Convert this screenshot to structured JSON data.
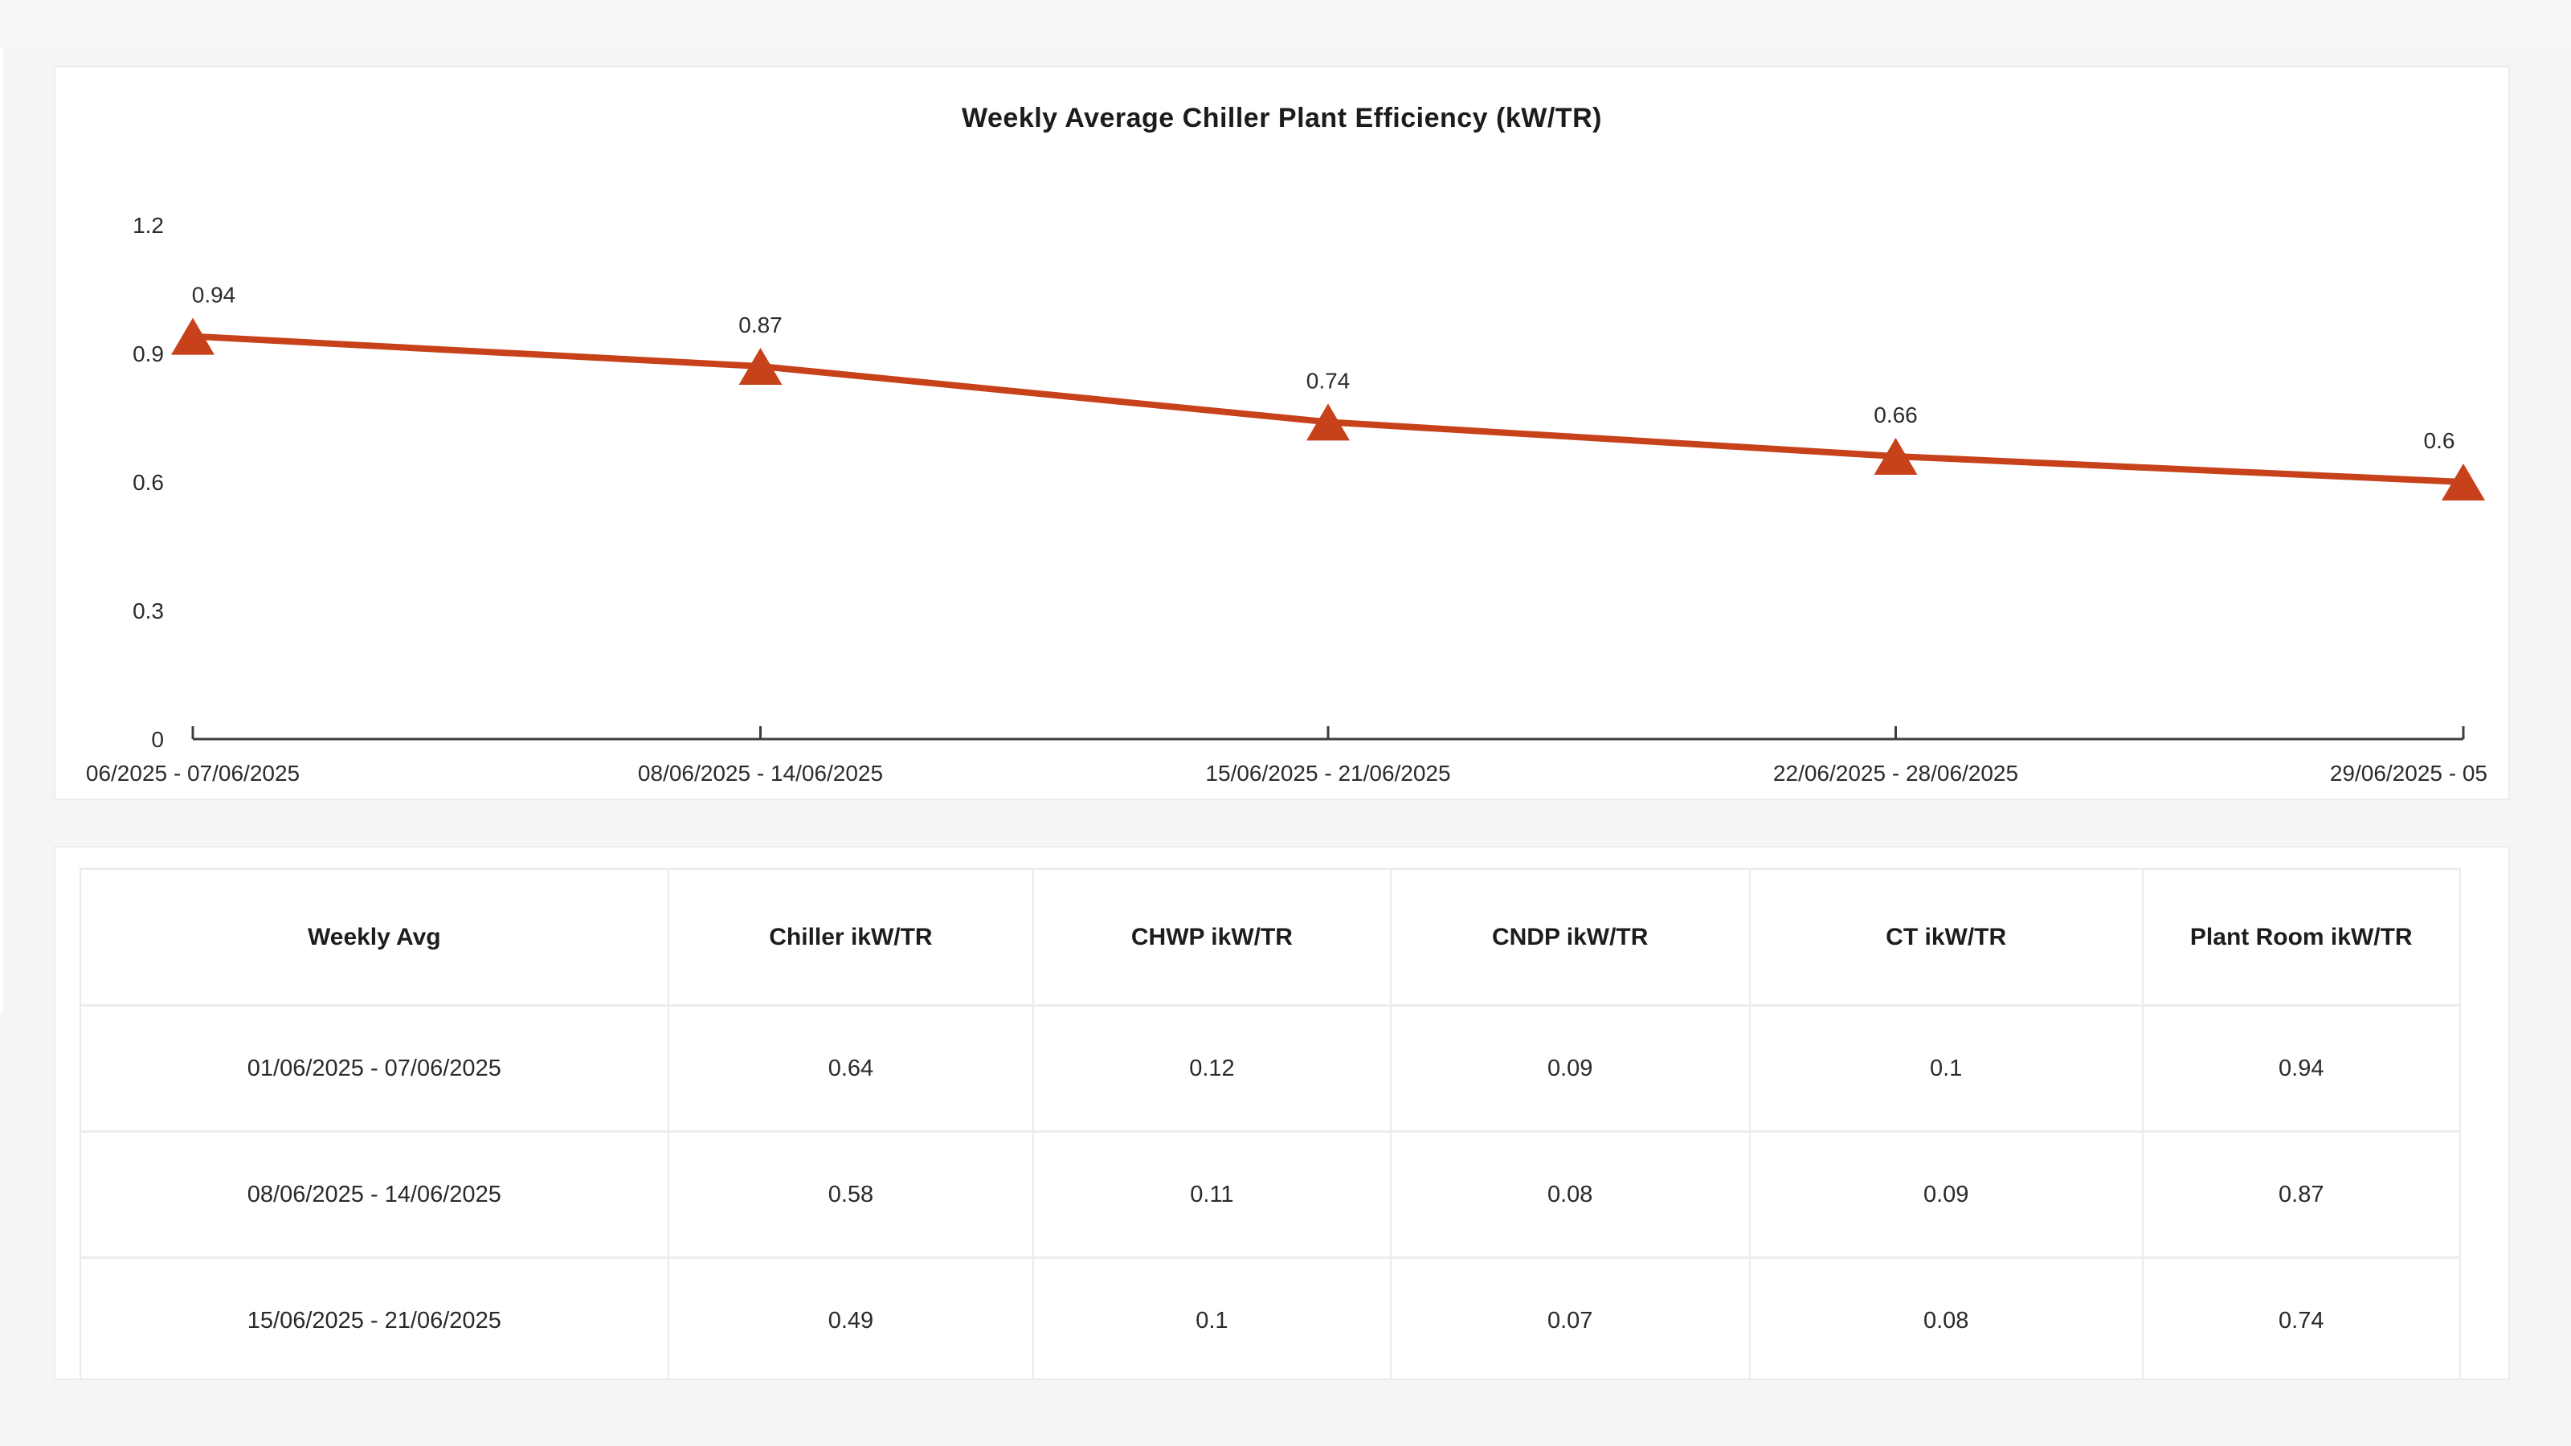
{
  "page": {
    "background": "#f5f5f6",
    "card_background": "#ffffff"
  },
  "chart_data": {
    "type": "line",
    "title": "Weekly Average Chiller Plant Efficiency (kW/TR)",
    "categories": [
      "06/2025 - 07/06/2025",
      "08/06/2025 - 14/06/2025",
      "15/06/2025 - 21/06/2025",
      "22/06/2025 - 28/06/2025",
      "29/06/2025 - 05"
    ],
    "series": [
      {
        "name": "Plant Room ikW/TR",
        "values": [
          0.94,
          0.87,
          0.74,
          0.66,
          0.6
        ],
        "point_labels": [
          "0.94",
          "0.87",
          "0.74",
          "0.66",
          "0.6"
        ]
      }
    ],
    "xlabel": "",
    "ylabel": "",
    "ylim": [
      0,
      1.2
    ],
    "y_ticks": [
      "0",
      "0.3",
      "0.6",
      "0.9",
      "1.2"
    ],
    "grid": false,
    "legend": "none",
    "line_color": "#c7421a",
    "marker_shape": "triangle-up",
    "axis_color": "#3d3d3d",
    "label_color": "#2b2b2b",
    "first_x_label_clipped": true,
    "last_x_label_clipped": true
  },
  "table": {
    "headers": [
      "Weekly Avg",
      "Chiller ikW/TR",
      "CHWP ikW/TR",
      "CNDP ikW/TR",
      "CT ikW/TR",
      "Plant Room ikW/TR"
    ],
    "rows": [
      [
        "01/06/2025 - 07/06/2025",
        "0.64",
        "0.12",
        "0.09",
        "0.1",
        "0.94"
      ],
      [
        "08/06/2025 - 14/06/2025",
        "0.58",
        "0.11",
        "0.08",
        "0.09",
        "0.87"
      ],
      [
        "15/06/2025 - 21/06/2025",
        "0.49",
        "0.1",
        "0.07",
        "0.08",
        "0.74"
      ],
      [
        "",
        "",
        "",
        "",
        "",
        ""
      ]
    ]
  }
}
